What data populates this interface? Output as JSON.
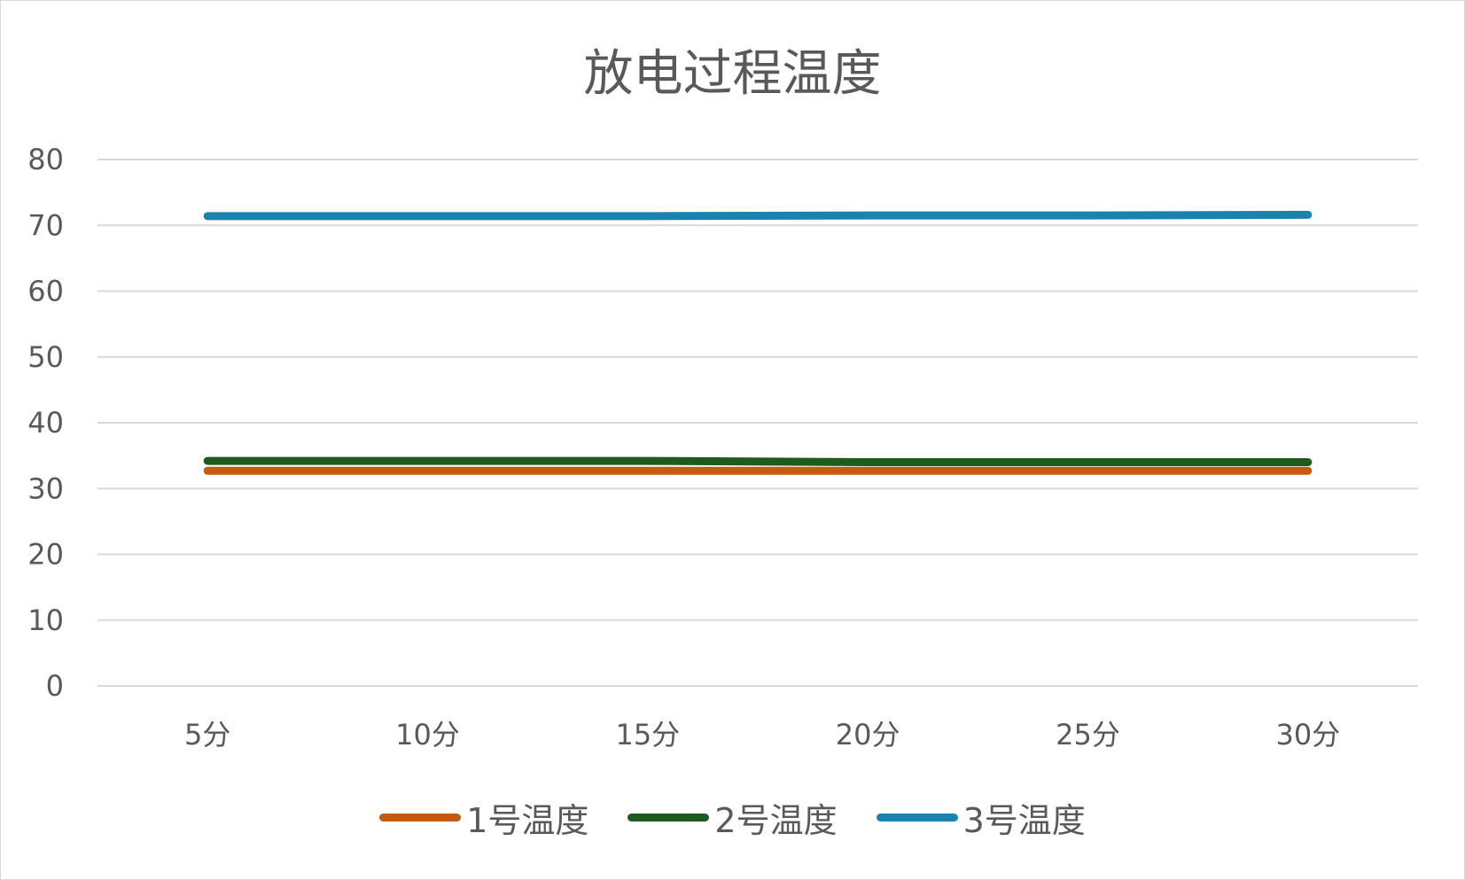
{
  "chart_data": {
    "type": "line",
    "title": "放电过程温度",
    "categories": [
      "5分",
      "10分",
      "15分",
      "20分",
      "25分",
      "30分"
    ],
    "series": [
      {
        "name": "1号温度",
        "color": "#C55A11",
        "values": [
          32.7,
          32.7,
          32.7,
          32.7,
          32.7,
          32.7
        ]
      },
      {
        "name": "2号温度",
        "color": "#1E5B1E",
        "values": [
          34.2,
          34.2,
          34.2,
          34.0,
          34.0,
          34.0
        ]
      },
      {
        "name": "3号温度",
        "color": "#1A82AE",
        "values": [
          71.4,
          71.4,
          71.4,
          71.5,
          71.5,
          71.6
        ]
      }
    ],
    "ylim": [
      0,
      80
    ],
    "yticks": [
      0,
      10,
      20,
      30,
      40,
      50,
      60,
      70,
      80
    ],
    "grid": true,
    "legend_position": "bottom",
    "xlabel": "",
    "ylabel": ""
  }
}
